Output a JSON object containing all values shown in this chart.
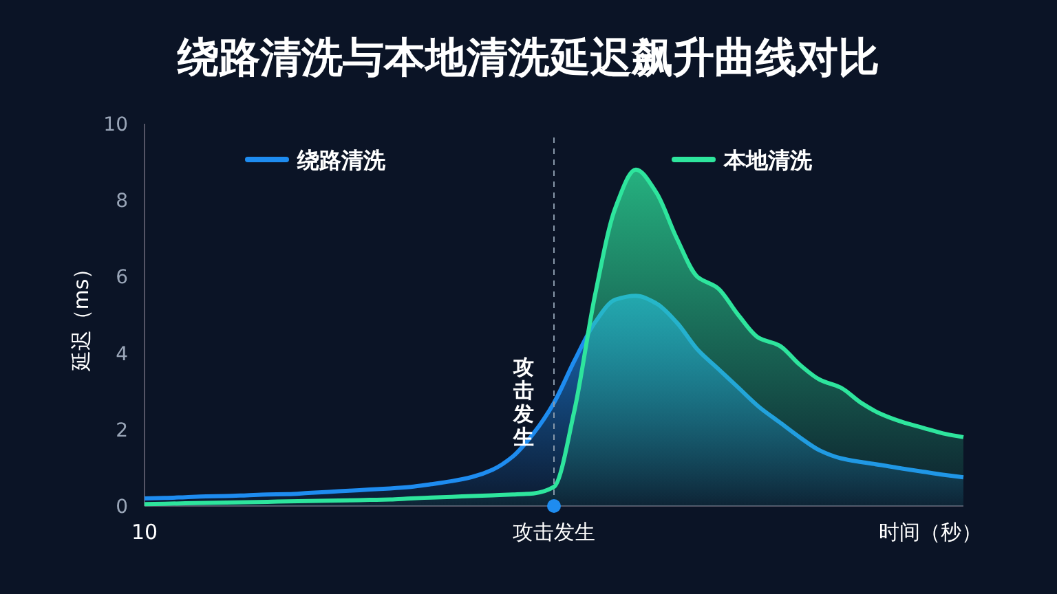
{
  "chart_data": {
    "type": "area",
    "title": "绕路清洗与本地清洗延迟飙升曲线对比",
    "xlabel": "时间（秒）",
    "ylabel": "延迟（ms）",
    "categories": [
      "10",
      null,
      null,
      null,
      null,
      null,
      null,
      null,
      null,
      null,
      null,
      null,
      null,
      null,
      null,
      null,
      null,
      null,
      null,
      null,
      "攻击发生",
      null,
      null,
      null,
      null,
      null,
      null,
      null,
      null,
      null,
      null,
      null,
      null,
      null,
      null,
      null,
      null,
      null,
      null,
      null,
      null
    ],
    "ylim": [
      0,
      10
    ],
    "yticks": [
      0,
      2,
      4,
      6,
      8,
      10
    ],
    "legend": "top",
    "ref_lines": [
      {
        "axis": "x",
        "value": "攻击发生",
        "line_style": "dashed"
      }
    ],
    "series": [
      {
        "name": "绕路清洗",
        "color": "#1e8cf0",
        "values": [
          0.2,
          0.21,
          0.23,
          0.25,
          0.26,
          0.28,
          0.3,
          0.31,
          0.34,
          0.37,
          0.4,
          0.43,
          0.46,
          0.5,
          0.57,
          0.65,
          0.76,
          0.95,
          1.3,
          1.9,
          2.7,
          3.8,
          4.8,
          5.4,
          5.5,
          5.3,
          4.8,
          4.1,
          3.6,
          3.1,
          2.6,
          2.2,
          1.8,
          1.45,
          1.25,
          1.15,
          1.07,
          0.98,
          0.9,
          0.82,
          0.75
        ]
      },
      {
        "name": "本地清洗",
        "color": "#2ee59d",
        "values": [
          0.05,
          0.06,
          0.07,
          0.08,
          0.09,
          0.1,
          0.11,
          0.12,
          0.13,
          0.14,
          0.15,
          0.16,
          0.17,
          0.2,
          0.22,
          0.24,
          0.26,
          0.28,
          0.3,
          0.33,
          0.5,
          2.5,
          5.5,
          7.8,
          8.8,
          8.2,
          7.0,
          6.0,
          5.7,
          5.0,
          4.4,
          4.2,
          3.7,
          3.3,
          3.1,
          2.7,
          2.4,
          2.2,
          2.05,
          1.9,
          1.8
        ]
      }
    ]
  }
}
